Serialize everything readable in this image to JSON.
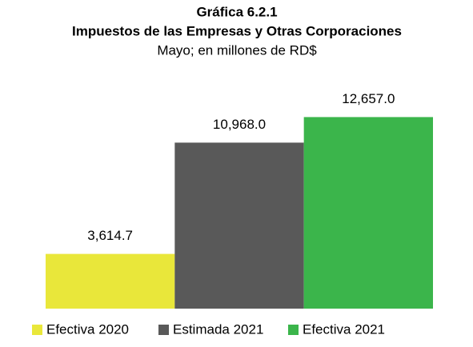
{
  "chart_data": {
    "type": "bar",
    "title": "Gráfica 6.2.1",
    "subtitle": [
      "Impuestos de las Empresas y Otras Corporaciones",
      "Mayo; en millones de RD$"
    ],
    "categories": [
      null
    ],
    "series": [
      {
        "name": "Efectiva 2020",
        "color": "#e9e73a",
        "values": [
          3614.7
        ],
        "value_labels": [
          "3,614.7"
        ]
      },
      {
        "name": "Estimada 2021",
        "color": "#595959",
        "values": [
          10968.0
        ],
        "value_labels": [
          "10,968.0"
        ]
      },
      {
        "name": "Efectiva 2021",
        "color": "#3bb54b",
        "values": [
          12657.0
        ],
        "value_labels": [
          "12,657.0"
        ]
      }
    ],
    "ylim": [
      0,
      14000
    ],
    "legend": "bottom"
  }
}
